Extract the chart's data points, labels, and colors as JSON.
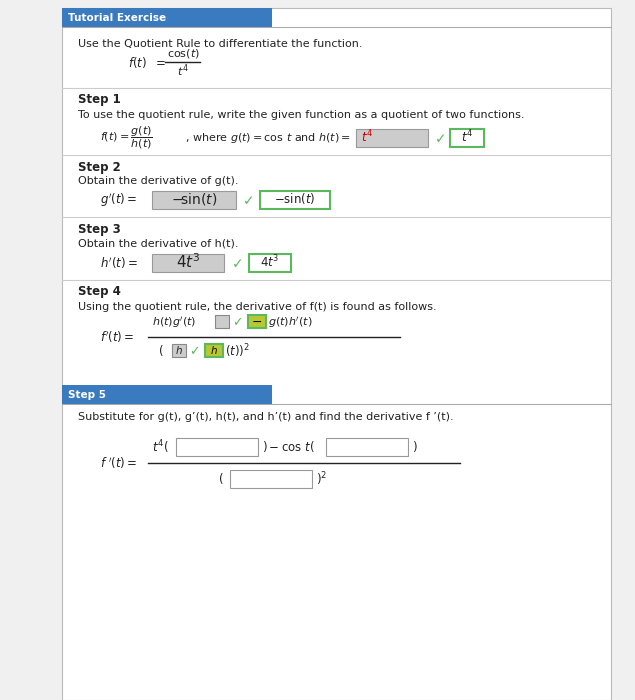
{
  "bg_color": "#f0f0f0",
  "white": "#ffffff",
  "blue_header": "#3a7abf",
  "header_text_color": "#ffffff",
  "body_text_color": "#222222",
  "gray_box_fill": "#cccccc",
  "green_box_border": "#5cb85c",
  "yellow_box_fill": "#b8c832",
  "line_color": "#cccccc",
  "title_text": "Tutorial Exercise",
  "step5_label": "Step 5",
  "intro_text": "Use the Quotient Rule to differentiate the function.",
  "step1_label": "Step 1",
  "step1_text": "To use the quotient rule, write the given function as a quotient of two functions.",
  "step2_label": "Step 2",
  "step2_text": "Obtain the derivative of g(t).",
  "step3_label": "Step 3",
  "step3_text": "Obtain the derivative of h(t).",
  "step4_label": "Step 4",
  "step4_text": "Using the quotient rule, the derivative of f(t) is found as follows.",
  "step5_text2": "Substitute for g(t), g’(t), h(t), and h’(t) and find the derivative f ’(t)."
}
